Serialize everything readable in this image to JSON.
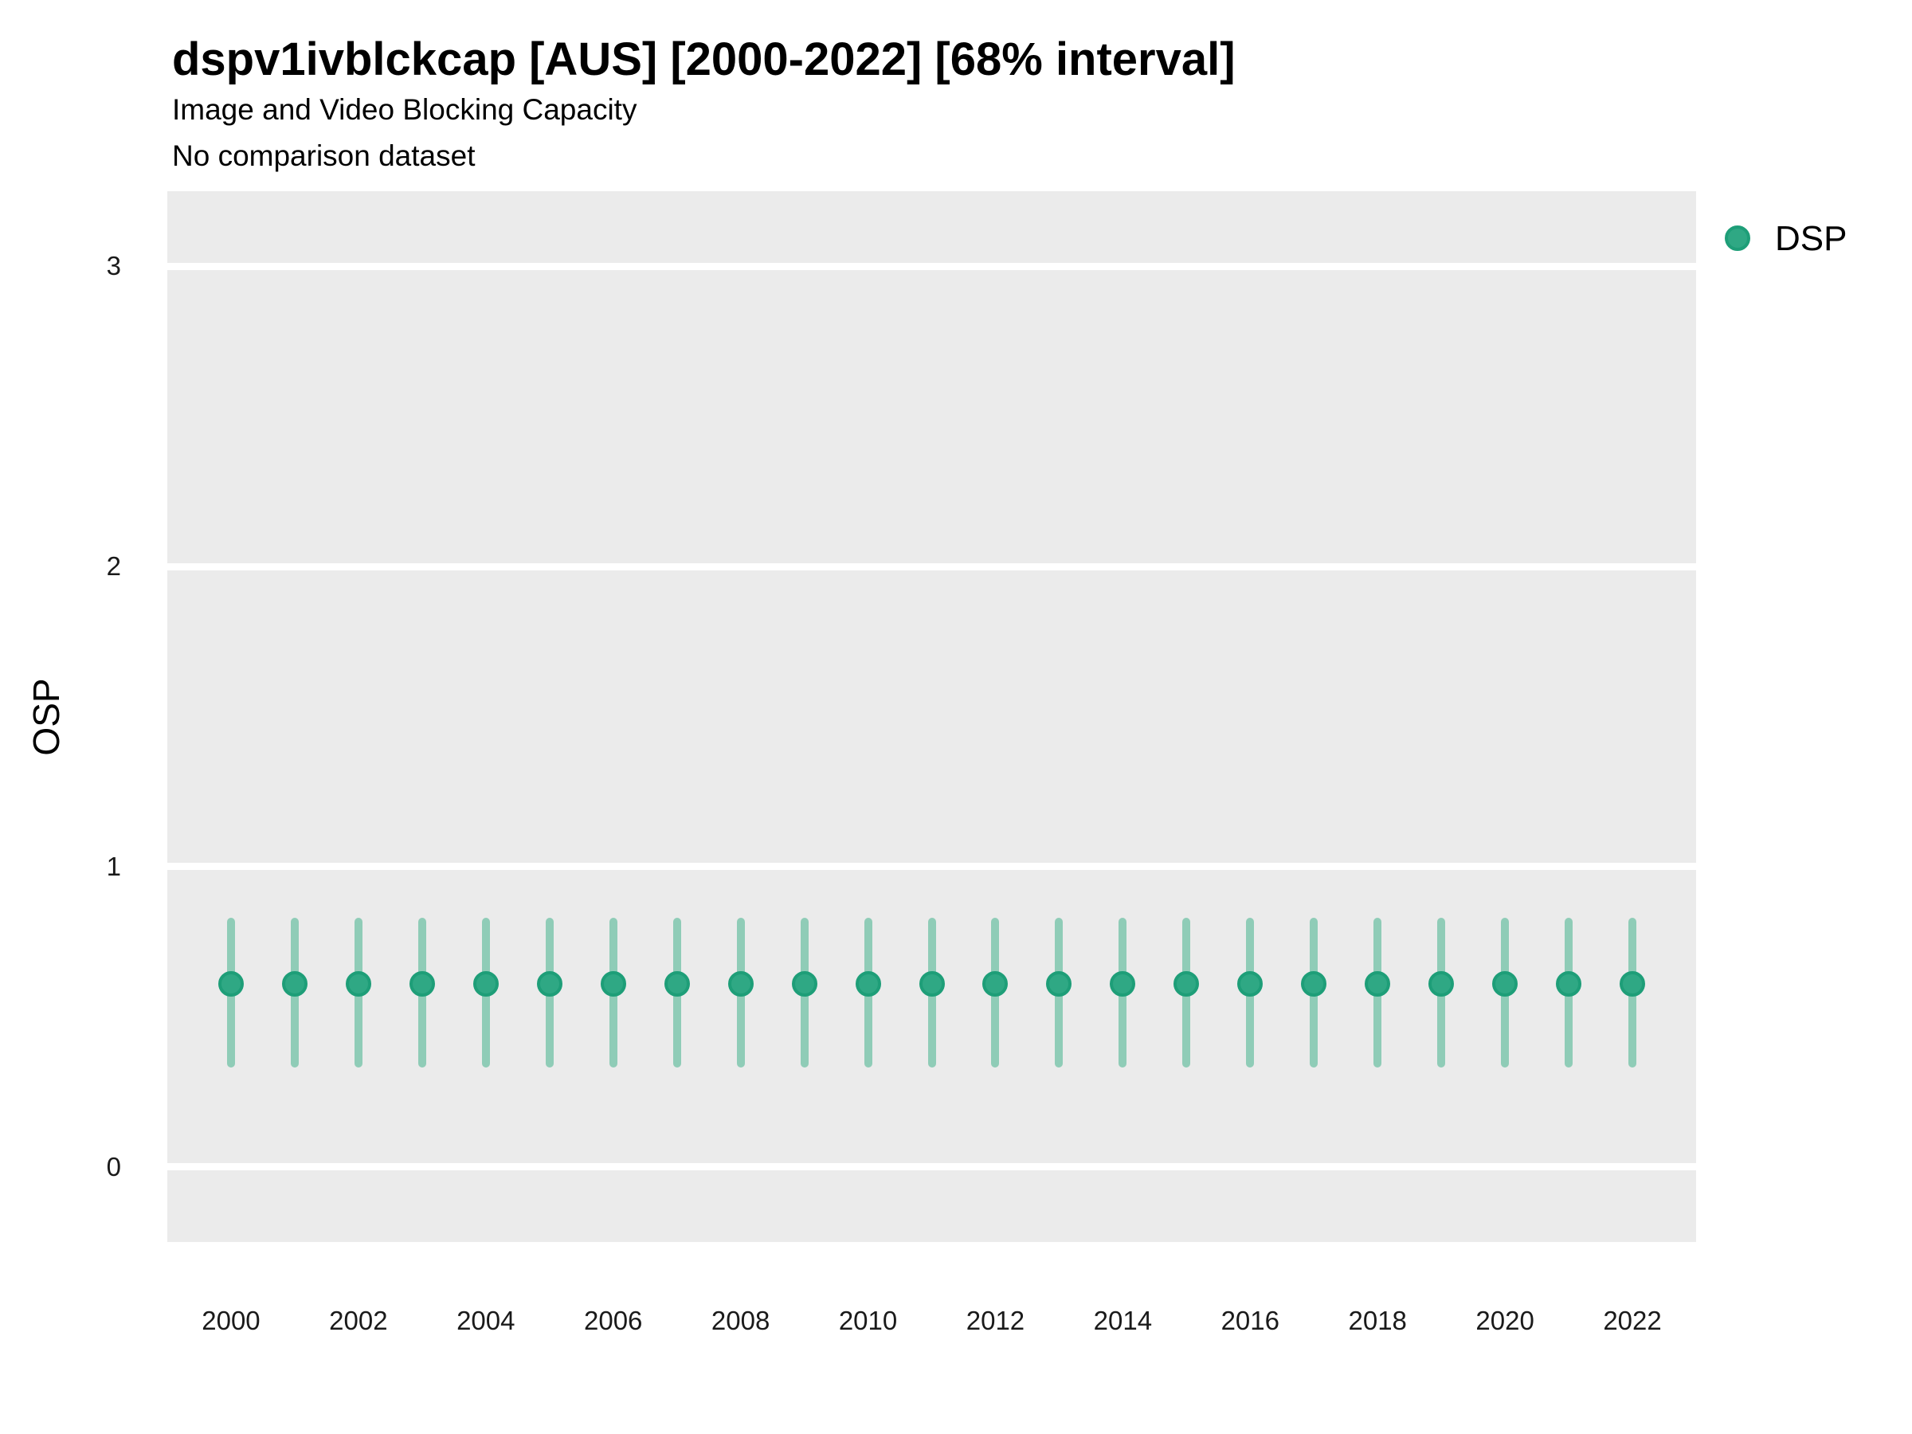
{
  "colors": {
    "point_fill": "#2FA884",
    "point_stroke": "#1E9E78",
    "errorbar": "#8FCCB7",
    "panel_bg": "#EBEBEB",
    "grid": "#FFFFFF",
    "text": "#000000"
  },
  "legend": {
    "position": "right",
    "items": [
      {
        "label": "DSP",
        "marker": "circle"
      }
    ]
  },
  "chart_data": {
    "type": "scatter",
    "subtype": "pointrange",
    "title": "dspv1ivblckcap [AUS] [2000-2022] [68% interval]",
    "subtitle": "Image and Video Blocking Capacity",
    "note": "No comparison dataset",
    "interval_level": "68%",
    "xlabel": "",
    "ylabel": "OSP",
    "x": [
      2000,
      2001,
      2002,
      2003,
      2004,
      2005,
      2006,
      2007,
      2008,
      2009,
      2010,
      2011,
      2012,
      2013,
      2014,
      2015,
      2016,
      2017,
      2018,
      2019,
      2020,
      2021,
      2022
    ],
    "series": [
      {
        "name": "DSP",
        "values": [
          0.61,
          0.61,
          0.61,
          0.61,
          0.61,
          0.61,
          0.61,
          0.61,
          0.61,
          0.61,
          0.61,
          0.61,
          0.61,
          0.61,
          0.61,
          0.61,
          0.61,
          0.61,
          0.61,
          0.61,
          0.61,
          0.61,
          0.61
        ],
        "lower": [
          0.33,
          0.33,
          0.33,
          0.33,
          0.33,
          0.33,
          0.33,
          0.33,
          0.33,
          0.33,
          0.33,
          0.33,
          0.33,
          0.33,
          0.33,
          0.33,
          0.33,
          0.33,
          0.33,
          0.33,
          0.33,
          0.33,
          0.33
        ],
        "upper": [
          0.83,
          0.83,
          0.83,
          0.83,
          0.83,
          0.83,
          0.83,
          0.83,
          0.83,
          0.83,
          0.83,
          0.83,
          0.83,
          0.83,
          0.83,
          0.83,
          0.83,
          0.83,
          0.83,
          0.83,
          0.83,
          0.83,
          0.83
        ]
      }
    ],
    "xlim": [
      1999,
      2023
    ],
    "ylim": [
      -0.25,
      3.25
    ],
    "xticks": [
      2000,
      2002,
      2004,
      2006,
      2008,
      2010,
      2012,
      2014,
      2016,
      2018,
      2020,
      2022
    ],
    "yticks": [
      0,
      1,
      2,
      3
    ],
    "grid": "horizontal-major-white",
    "legend_position": "right",
    "panel_background": "gray"
  }
}
